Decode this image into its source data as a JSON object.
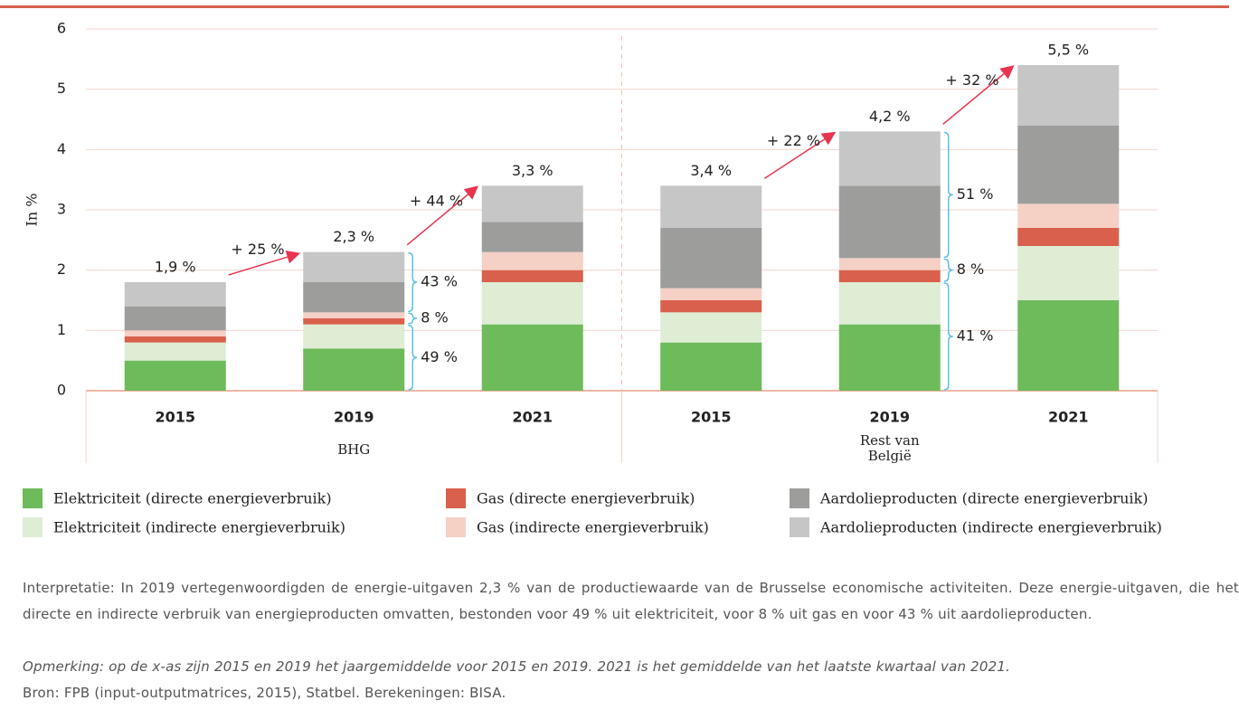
{
  "chart_data": {
    "type": "stacked_bar",
    "ylabel": "In %",
    "categories": [
      "2015",
      "2019",
      "2021",
      "2015",
      "2019",
      "2021"
    ],
    "groups": [
      "BHG",
      "Rest van België"
    ],
    "series": [
      {
        "name": "Elektriciteit (directe energieverbruik)",
        "color": "#6dbb5a",
        "values": [
          0.5,
          0.7,
          1.1,
          0.8,
          1.1,
          1.5
        ]
      },
      {
        "name": "Elektriciteit (indirecte energieverbruik)",
        "color": "#deedd4",
        "values": [
          0.3,
          0.4,
          0.7,
          0.5,
          0.7,
          0.9
        ]
      },
      {
        "name": "Gas (directe energieverbruik)",
        "color": "#d9604c",
        "values": [
          0.1,
          0.1,
          0.2,
          0.2,
          0.2,
          0.3
        ]
      },
      {
        "name": "Gas (indirecte energieverbruik)",
        "color": "#f5d0c5",
        "values": [
          0.1,
          0.1,
          0.3,
          0.2,
          0.2,
          0.4
        ]
      },
      {
        "name": "Aardolieproducten (directe energieverbruik)",
        "color": "#9d9d9b",
        "values": [
          0.4,
          0.5,
          0.5,
          1.0,
          1.2,
          1.3
        ]
      },
      {
        "name": "Aardolieproducten (indirecte energieverbruik)",
        "color": "#c6c6c6",
        "values": [
          0.4,
          0.5,
          0.6,
          0.7,
          0.9,
          1.0
        ]
      }
    ],
    "total_labels": [
      "1,9 %",
      "2,3 %",
      "3,3 %",
      "3,4 %",
      "4,2 %",
      "5,5 %"
    ],
    "growth_labels": [
      "+ 25 %",
      "+ 44 %",
      "+ 22 %",
      "+ 32 %"
    ],
    "shares": [
      [
        "49 %",
        "8 %",
        "43 %"
      ],
      [
        "41 %",
        "8 %",
        "51 %"
      ]
    ],
    "ylim": [
      0,
      6
    ],
    "yticks": [
      0,
      1,
      2,
      3,
      4,
      5,
      6
    ],
    "grid": true
  },
  "notes": {
    "interpretation": "Interpretatie: In 2019 vertegenwoordigden de energie-uitgaven 2,3 % van de productiewaarde van de Brusselse economische activiteiten. Deze energie-uitgaven, die het directe en indirecte verbruik van energieproducten omvatten, bestonden voor 49 % uit elektriciteit, voor 8 % uit gas en voor 43 % uit aardolieproducten.",
    "remark": "Opmerking: op de x-as zijn 2015 en 2019 het jaargemiddelde voor 2015 en 2019. 2021 is het gemiddelde van het laatste kwartaal van 2021.",
    "source": "Bron: FPB (input-outputmatrices, 2015), Statbel. Berekeningen: BISA."
  }
}
